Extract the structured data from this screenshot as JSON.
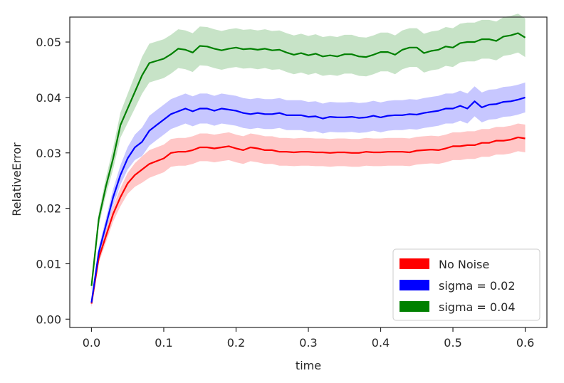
{
  "chart_data": {
    "type": "line",
    "title": "",
    "xlabel": "time",
    "ylabel": "RelativeError",
    "xlim": [
      -0.03,
      0.63
    ],
    "ylim": [
      -0.0015,
      0.0545
    ],
    "xticks": [
      0.0,
      0.1,
      0.2,
      0.3,
      0.4,
      0.5,
      0.6
    ],
    "xtick_labels": [
      "0.0",
      "0.1",
      "0.2",
      "0.3",
      "0.4",
      "0.5",
      "0.6"
    ],
    "yticks": [
      0.0,
      0.01,
      0.02,
      0.03,
      0.04,
      0.05
    ],
    "ytick_labels": [
      "0.00",
      "0.01",
      "0.02",
      "0.03",
      "0.04",
      "0.05"
    ],
    "grid": false,
    "legend_position": "lower-right",
    "x": [
      0.0,
      0.01,
      0.02,
      0.03,
      0.04,
      0.05,
      0.06,
      0.07,
      0.08,
      0.09,
      0.1,
      0.11,
      0.12,
      0.13,
      0.14,
      0.15,
      0.16,
      0.17,
      0.18,
      0.19,
      0.2,
      0.21,
      0.22,
      0.23,
      0.24,
      0.25,
      0.26,
      0.27,
      0.28,
      0.29,
      0.3,
      0.31,
      0.32,
      0.33,
      0.34,
      0.35,
      0.36,
      0.37,
      0.38,
      0.39,
      0.4,
      0.41,
      0.42,
      0.43,
      0.44,
      0.45,
      0.46,
      0.47,
      0.48,
      0.49,
      0.5,
      0.51,
      0.52,
      0.53,
      0.54,
      0.55,
      0.56,
      0.57,
      0.58,
      0.59,
      0.6
    ],
    "series": [
      {
        "name": "No Noise",
        "color": "#ff0000",
        "band_color": "#ff9999",
        "values": [
          0.0028,
          0.011,
          0.015,
          0.019,
          0.022,
          0.0245,
          0.026,
          0.027,
          0.028,
          0.0285,
          0.029,
          0.03,
          0.0302,
          0.0302,
          0.0305,
          0.031,
          0.031,
          0.0308,
          0.031,
          0.0312,
          0.0308,
          0.0305,
          0.031,
          0.0308,
          0.0305,
          0.0305,
          0.0302,
          0.0302,
          0.0301,
          0.0302,
          0.0302,
          0.0301,
          0.0301,
          0.03,
          0.0301,
          0.0301,
          0.03,
          0.03,
          0.0302,
          0.0301,
          0.0301,
          0.0302,
          0.0302,
          0.0302,
          0.0301,
          0.0304,
          0.0305,
          0.0306,
          0.0305,
          0.0308,
          0.0312,
          0.0312,
          0.0314,
          0.0314,
          0.0318,
          0.0318,
          0.0322,
          0.0322,
          0.0324,
          0.0328,
          0.0326
        ],
        "band": 0.0025
      },
      {
        "name": "sigma = 0.02",
        "color": "#0000ff",
        "band_color": "#9999ff",
        "values": [
          0.003,
          0.012,
          0.017,
          0.022,
          0.026,
          0.029,
          0.031,
          0.032,
          0.034,
          0.035,
          0.036,
          0.037,
          0.0375,
          0.038,
          0.0375,
          0.038,
          0.038,
          0.0376,
          0.038,
          0.0378,
          0.0376,
          0.0372,
          0.037,
          0.0372,
          0.037,
          0.037,
          0.0372,
          0.0368,
          0.0368,
          0.0368,
          0.0365,
          0.0366,
          0.0362,
          0.0365,
          0.0364,
          0.0364,
          0.0365,
          0.0363,
          0.0364,
          0.0367,
          0.0364,
          0.0367,
          0.0368,
          0.0368,
          0.037,
          0.0369,
          0.0372,
          0.0374,
          0.0376,
          0.038,
          0.038,
          0.0385,
          0.038,
          0.0393,
          0.0382,
          0.0387,
          0.0388,
          0.0392,
          0.0393,
          0.0396,
          0.04
        ],
        "band": 0.0027
      },
      {
        "name": "sigma = 0.04",
        "color": "#008000",
        "band_color": "#99cc99",
        "values": [
          0.006,
          0.018,
          0.024,
          0.029,
          0.035,
          0.038,
          0.041,
          0.044,
          0.0462,
          0.0466,
          0.047,
          0.0478,
          0.0488,
          0.0486,
          0.0481,
          0.0493,
          0.0492,
          0.0488,
          0.0485,
          0.0488,
          0.049,
          0.0487,
          0.0488,
          0.0486,
          0.0488,
          0.0485,
          0.0486,
          0.0481,
          0.0477,
          0.048,
          0.0476,
          0.0479,
          0.0474,
          0.0476,
          0.0474,
          0.0478,
          0.0478,
          0.0474,
          0.0473,
          0.0477,
          0.0482,
          0.0482,
          0.0477,
          0.0486,
          0.049,
          0.049,
          0.048,
          0.0484,
          0.0486,
          0.0492,
          0.049,
          0.0498,
          0.05,
          0.05,
          0.0505,
          0.0505,
          0.0502,
          0.051,
          0.0512,
          0.0516,
          0.0508
        ],
        "band": 0.0035
      }
    ]
  }
}
